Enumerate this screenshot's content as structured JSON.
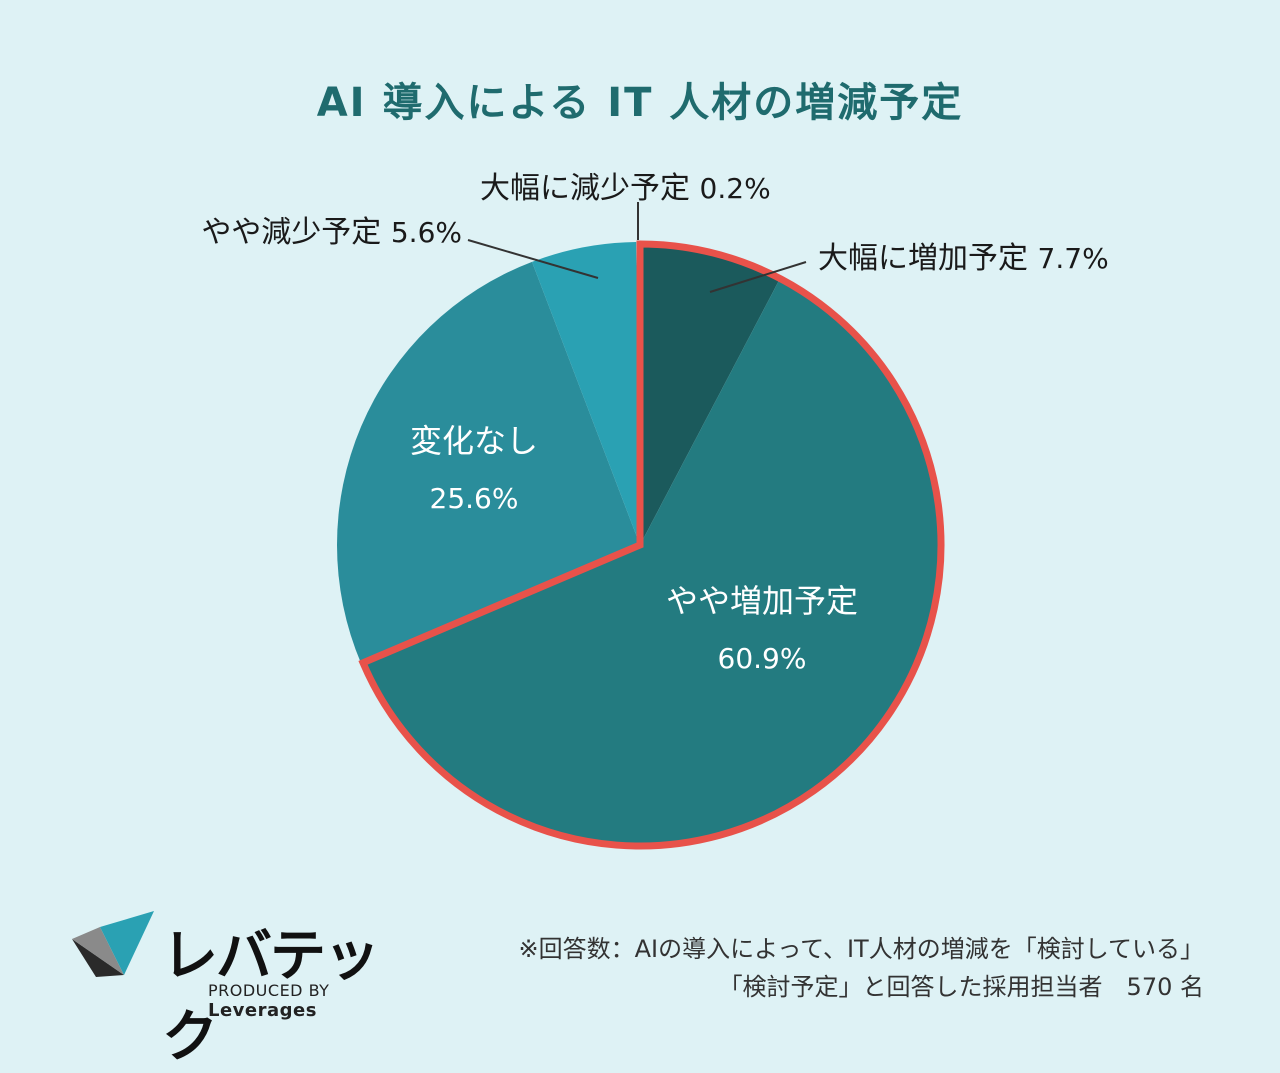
{
  "chart_data": {
    "type": "pie",
    "title": "AI 導入による IT 人材の増減予定",
    "slices": [
      {
        "label": "大幅に増加予定",
        "value": 7.7,
        "display": "7.7%",
        "color": "#1b5a5c"
      },
      {
        "label": "やや増加予定",
        "value": 60.9,
        "display": "60.9%",
        "color": "#237b80"
      },
      {
        "label": "変化なし",
        "value": 25.6,
        "display": "25.6%",
        "color": "#2a8d9b"
      },
      {
        "label": "やや減少予定",
        "value": 5.6,
        "display": "5.6%",
        "color": "#2aa1b3"
      },
      {
        "label": "大幅に減少予定",
        "value": 0.2,
        "display": "0.2%",
        "color": "#9fc7cc"
      }
    ],
    "highlight_color": "#e8524a",
    "highlighted_slices": [
      "大幅に増加予定",
      "やや増加予定"
    ]
  },
  "logo": {
    "name": "レバテック",
    "produced_by": "PRODUCED BY",
    "brand": "Leverages"
  },
  "note": {
    "line1": "※回答数：AIの導入によって、IT人材の増減を「検討している」",
    "line2": "「検討予定」と回答した採用担当者　570 名"
  }
}
